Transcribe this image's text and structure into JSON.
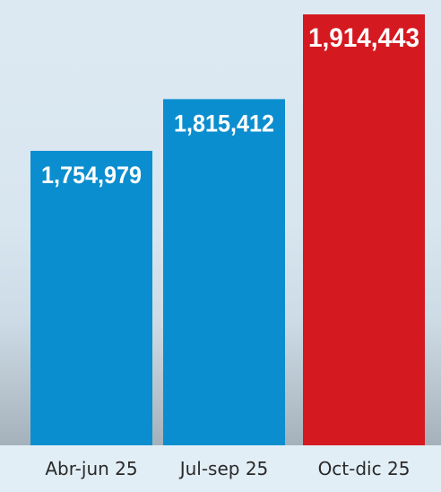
{
  "chart_data": {
    "type": "bar",
    "categories": [
      "Abr-jun 25",
      "Jul-sep 25",
      "Oct-dic 25"
    ],
    "values": [
      1754979,
      1815412,
      1914443
    ],
    "value_labels": [
      "1,754,979",
      "1,815,412",
      "1,914,443"
    ],
    "colors": [
      "#0b8ecf",
      "#0b8ecf",
      "#d51920"
    ],
    "title": "",
    "xlabel": "",
    "ylabel": "",
    "grid": false,
    "legend": "none"
  }
}
